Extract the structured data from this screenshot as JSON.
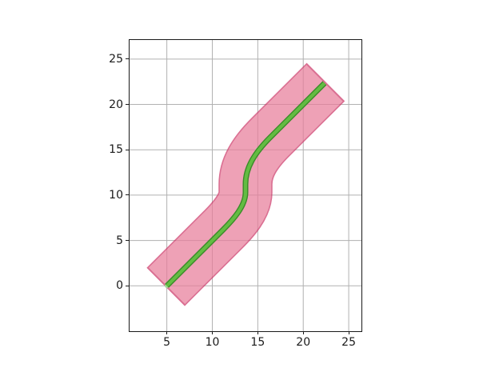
{
  "chart_data": {
    "type": "line",
    "title": "",
    "xlabel": "",
    "ylabel": "",
    "xlim": [
      0.9,
      26.4
    ],
    "ylim": [
      -5.0,
      27.1
    ],
    "xticks": [
      5,
      10,
      15,
      20,
      25
    ],
    "yticks": [
      0,
      5,
      10,
      15,
      20,
      25
    ],
    "grid": true,
    "grid_color": "#b1b1b1",
    "axes_color": "#1a1a1a",
    "background": "#ffffff",
    "series": [
      {
        "name": "waypoints",
        "type": "scatter",
        "points": [
          [
            5,
            0
          ],
          [
            10,
            5
          ],
          [
            15,
            15
          ],
          [
            20,
            20
          ]
        ],
        "marker_color": "#A4DA9B",
        "marker_radius_px": 2.6
      },
      {
        "name": "road-band",
        "type": "buffer",
        "half_width": 2.83,
        "fill": "#E87E9B",
        "edge": "#CD3869",
        "opacity": 0.72,
        "cap_style": "flat",
        "start": [
          5,
          0
        ],
        "end": [
          22.35,
          22.35
        ]
      },
      {
        "name": "road-centerline",
        "type": "path",
        "color": "#63BC42",
        "edge_color": "#3A8B29",
        "start": [
          5,
          0
        ],
        "end": [
          22.35,
          22.35
        ]
      }
    ],
    "centerline_path": [
      [
        "M",
        5,
        0
      ],
      [
        "L",
        11.2,
        6.2
      ],
      [
        "C",
        12.3,
        7.3,
        13.65,
        8.8,
        13.65,
        10.3
      ],
      [
        "L",
        13.65,
        11.2
      ],
      [
        "C",
        13.65,
        13.0,
        14.6,
        14.6,
        16.4,
        16.4
      ],
      [
        "L",
        22.35,
        22.35
      ]
    ]
  }
}
